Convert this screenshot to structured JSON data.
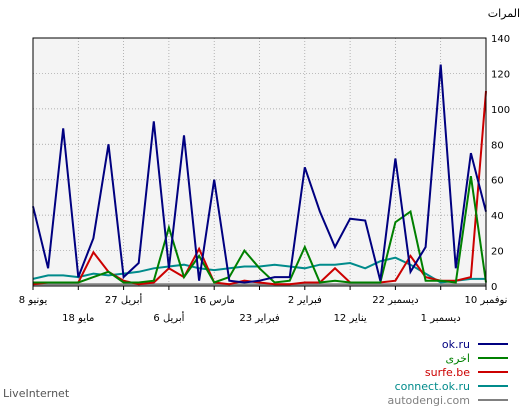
{
  "chart_data": {
    "type": "line",
    "ylabel": "المرات",
    "ylim": [
      0,
      140
    ],
    "yticks": [
      0,
      20,
      40,
      60,
      80,
      100,
      120,
      140
    ],
    "grid": true,
    "legend_position": "bottom-right",
    "x_axis_direction": "right-to-left",
    "xticks_upper": [
      {
        "label": "10 نوفمبر",
        "pos": 0
      },
      {
        "label": "22 ديسمبر",
        "pos": 6
      },
      {
        "label": "2 فبراير",
        "pos": 12
      },
      {
        "label": "16 مارس",
        "pos": 18
      },
      {
        "label": "27 أبريل",
        "pos": 24
      },
      {
        "label": "8 يونيو",
        "pos": 30
      }
    ],
    "xticks_lower": [
      {
        "label": "1 ديسمبر",
        "pos": 3
      },
      {
        "label": "12 يناير",
        "pos": 9
      },
      {
        "label": "23 فبراير",
        "pos": 15
      },
      {
        "label": "6 أبريل",
        "pos": 21
      },
      {
        "label": "18 مايو",
        "pos": 27
      }
    ],
    "x_count": 31,
    "series": [
      {
        "name": "ok.ru",
        "color": "#000080",
        "values": [
          42,
          75,
          10,
          125,
          22,
          8,
          72,
          3,
          37,
          38,
          22,
          42,
          67,
          5,
          5,
          3,
          2,
          3,
          60,
          3,
          85,
          10,
          93,
          13,
          5,
          80,
          27,
          5,
          89,
          10,
          45
        ]
      },
      {
        "name": "اخرى",
        "color": "#008000",
        "values": [
          2,
          62,
          2,
          3,
          3,
          42,
          36,
          2,
          2,
          2,
          3,
          2,
          22,
          3,
          2,
          10,
          20,
          5,
          2,
          17,
          5,
          33,
          3,
          2,
          2,
          8,
          5,
          2,
          2,
          2,
          2
        ]
      },
      {
        "name": "surfe.be",
        "color": "#cc0000",
        "values": [
          110,
          5,
          3,
          3,
          5,
          17,
          3,
          2,
          2,
          2,
          10,
          2,
          2,
          1,
          1,
          2,
          3,
          1,
          2,
          21,
          5,
          10,
          2,
          1,
          3,
          8,
          19,
          2,
          2,
          2,
          1
        ]
      },
      {
        "name": "connect.ok.ru",
        "color": "#008b8b",
        "values": [
          4,
          4,
          3,
          2,
          7,
          12,
          16,
          14,
          10,
          13,
          12,
          12,
          10,
          11,
          12,
          11,
          11,
          10,
          9,
          10,
          12,
          11,
          10,
          8,
          7,
          6,
          7,
          5,
          6,
          6,
          4
        ]
      },
      {
        "name": "autodengi.com",
        "color": "#808080",
        "values": [
          1,
          1,
          1,
          1,
          1,
          1,
          1,
          1,
          1,
          1,
          1,
          1,
          1,
          1,
          1,
          1,
          1,
          1,
          1,
          1,
          1,
          1,
          1,
          1,
          1,
          1,
          1,
          1,
          1,
          1,
          1
        ]
      }
    ]
  },
  "watermark": "LiveInternet"
}
